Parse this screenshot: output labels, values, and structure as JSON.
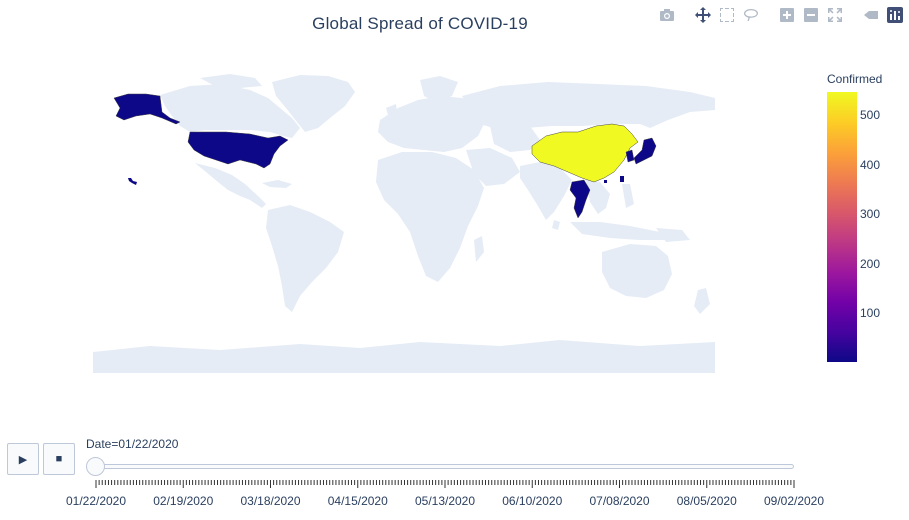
{
  "title": "Global Spread of COVID-19",
  "colorbar": {
    "title": "Confirmed",
    "ticks": [
      "100",
      "200",
      "300",
      "400",
      "500"
    ],
    "tick_values": [
      100,
      200,
      300,
      400,
      500
    ],
    "range": [
      1,
      547
    ],
    "colorscale": "plasma"
  },
  "map": {
    "land_color": "#e5ecf6",
    "highlighted": [
      {
        "name": "China",
        "value": 547
      },
      {
        "name": "Japan",
        "value": 2
      },
      {
        "name": "South Korea",
        "value": 1
      },
      {
        "name": "Taiwan",
        "value": 1
      },
      {
        "name": "Thailand",
        "value": 4
      },
      {
        "name": "Macau",
        "value": 1
      },
      {
        "name": "United States",
        "value": 1
      }
    ]
  },
  "slider": {
    "current_label": "Date=01/22/2020",
    "ticks": [
      "01/22/2020",
      "02/19/2020",
      "03/18/2020",
      "04/15/2020",
      "05/13/2020",
      "06/10/2020",
      "07/08/2020",
      "08/05/2020",
      "09/02/2020"
    ]
  },
  "controls": {
    "play": "▶",
    "stop": "■"
  },
  "modebar": {
    "icons": [
      "camera-icon",
      "pan-icon",
      "box-select-icon",
      "lasso-icon",
      "zoom-in-icon",
      "zoom-out-icon",
      "reset-icon",
      "hover-icon",
      "plotly-logo-icon"
    ]
  }
}
